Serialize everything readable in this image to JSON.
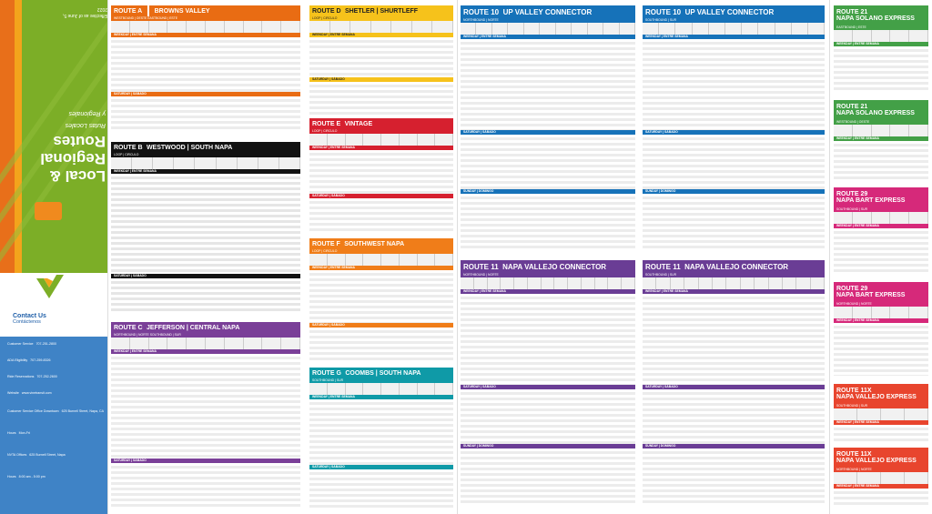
{
  "cover": {
    "title_line1": "Local &",
    "title_line2": "Regional",
    "title_line3": "Routes",
    "subtitle1": "Rutas Locales",
    "subtitle2": "y Regionales",
    "effective": "Effective as of June 5, 2022",
    "contact_title": "Contact Us",
    "contact_sub": "Contáctenos",
    "info": [
      [
        "Customer Service",
        "707-251-2800"
      ],
      [
        "ADA Eligibility",
        "707-259-8326"
      ],
      [
        "Ride Reservations",
        "707-252-2600"
      ],
      [
        "Website",
        "www.vinetransit.com"
      ],
      [
        "Customer Service Office Downtown",
        "625 Burnell Street, Napa, CA"
      ],
      [
        "Hours",
        "Mon-Fri"
      ],
      [
        "NVTA Offices",
        "625 Burnell Street, Napa"
      ],
      [
        "Hours",
        "8:00 am - 5:00 pm"
      ]
    ],
    "colors": {
      "green": "#7cae27",
      "orange": "#e86f1a",
      "blue": "#3f83c6"
    }
  },
  "routes": [
    {
      "id": "a",
      "title": "ROUTE A",
      "name": "BROWNS VALLEY",
      "sub": "WESTBOUND | OESTE        EASTBOUND | ESTE",
      "weekday": "WEEKDAY | ENTRE SEMANA",
      "saturday": "SATURDAY | SÁBADO",
      "color": "#e96c13"
    },
    {
      "id": "b",
      "title": "ROUTE B",
      "name": "WESTWOOD | SOUTH NAPA",
      "sub": "LOOP | CIRCULO",
      "weekday": "WEEKDAY | ENTRE SEMANA",
      "saturday": "SATURDAY | SÁBADO",
      "color": "#121212"
    },
    {
      "id": "c",
      "title": "ROUTE C",
      "name": "JEFFERSON | CENTRAL NAPA",
      "sub": "NORTHBOUND | NORTE        SOUTHBOUND | SUR",
      "weekday": "WEEKDAY | ENTRE SEMANA",
      "saturday": "SATURDAY | SÁBADO",
      "color": "#7a3f98"
    },
    {
      "id": "d",
      "title": "ROUTE D",
      "name": "SHETLER | SHURTLEFF",
      "sub": "LOOP | CIRCULO",
      "weekday": "WEEKDAY | ENTRE SEMANA",
      "saturday": "SATURDAY | SÁBADO",
      "color": "#f6c21b"
    },
    {
      "id": "e",
      "title": "ROUTE E",
      "name": "VINTAGE",
      "sub": "LOOP | CIRCULO",
      "weekday": "WEEKDAY | ENTRE SEMANA",
      "saturday": "SATURDAY | SÁBADO",
      "color": "#d6202f"
    },
    {
      "id": "f",
      "title": "ROUTE F",
      "name": "SOUTHWEST NAPA",
      "sub": "LOOP | CIRCULO",
      "weekday": "WEEKDAY | ENTRE SEMANA",
      "saturday": "SATURDAY | SÁBADO",
      "color": "#f07d19"
    },
    {
      "id": "g",
      "title": "ROUTE G",
      "name": "COOMBS | SOUTH NAPA",
      "sub": "SOUTHBOUND | SUR",
      "weekday": "WEEKDAY | ENTRE SEMANA",
      "saturday": "SATURDAY | SÁBADO",
      "color": "#0f9aa7"
    },
    {
      "id": "10n",
      "title": "ROUTE 10",
      "name": "UP VALLEY CONNECTOR",
      "sub": "NORTHBOUND | NORTE",
      "weekday": "WEEKDAY | ENTRE SEMANA",
      "saturday": "SATURDAY | SÁBADO",
      "sunday": "SUNDAY | DOMINGO",
      "color": "#1672b9"
    },
    {
      "id": "10s",
      "title": "ROUTE 10",
      "name": "UP VALLEY CONNECTOR",
      "sub": "SOUTHBOUND | SUR",
      "weekday": "WEEKDAY | ENTRE SEMANA",
      "saturday": "SATURDAY | SÁBADO",
      "sunday": "SUNDAY | DOMINGO",
      "color": "#1672b9"
    },
    {
      "id": "11n",
      "title": "ROUTE 11",
      "name": "NAPA VALLEJO CONNECTOR",
      "sub": "NORTHBOUND | NORTE",
      "weekday": "WEEKDAY | ENTRE SEMANA",
      "saturday": "SATURDAY | SÁBADO",
      "sunday": "SUNDAY | DOMINGO",
      "color": "#6a3d95"
    },
    {
      "id": "11s",
      "title": "ROUTE 11",
      "name": "NAPA VALLEJO CONNECTOR",
      "sub": "SOUTHBOUND | SUR",
      "weekday": "WEEKDAY | ENTRE SEMANA",
      "saturday": "SATURDAY | SÁBADO",
      "sunday": "SUNDAY | DOMINGO",
      "color": "#6a3d95"
    },
    {
      "id": "21e",
      "title": "ROUTE 21",
      "name": "NAPA SOLANO EXPRESS",
      "sub": "EASTBOUND | ESTE",
      "weekday": "WEEKDAY | ENTRE SEMANA",
      "color": "#43a047"
    },
    {
      "id": "21w",
      "title": "ROUTE 21",
      "name": "NAPA SOLANO EXPRESS",
      "sub": "WESTBOUND | OESTE",
      "weekday": "WEEKDAY | ENTRE SEMANA",
      "color": "#43a047"
    },
    {
      "id": "29s",
      "title": "ROUTE 29",
      "name": "NAPA BART EXPRESS",
      "sub": "SOUTHBOUND | SUR",
      "weekday": "WEEKDAY | ENTRE SEMANA",
      "color": "#d6297a"
    },
    {
      "id": "29n",
      "title": "ROUTE 29",
      "name": "NAPA BART EXPRESS",
      "sub": "NORTHBOUND | NORTE",
      "weekday": "WEEKDAY | ENTRE SEMANA",
      "color": "#d6297a"
    },
    {
      "id": "11xs",
      "title": "ROUTE 11X",
      "name": "NAPA VALLEJO EXPRESS",
      "sub": "SOUTHBOUND | SUR",
      "weekday": "WEEKDAY | ENTRE SEMANA",
      "color": "#e8452e"
    },
    {
      "id": "11xn",
      "title": "ROUTE 11X",
      "name": "NAPA VALLEJO EXPRESS",
      "sub": "NORTHBOUND | NORTE",
      "weekday": "WEEKDAY | ENTRE SEMANA",
      "color": "#e8452e"
    }
  ]
}
